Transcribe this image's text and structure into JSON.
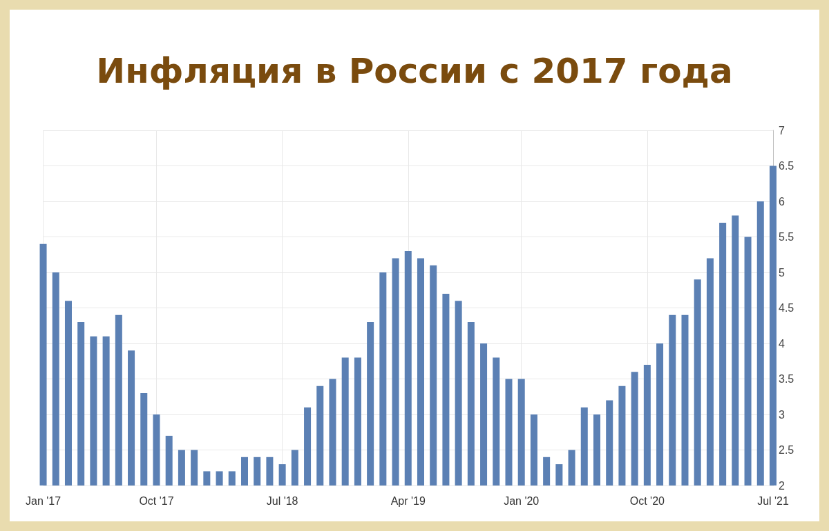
{
  "chart_data": {
    "type": "bar",
    "title": "Инфляция в России с 2017 года",
    "categories": [
      "Jan '17",
      null,
      null,
      null,
      null,
      null,
      null,
      null,
      null,
      "Oct '17",
      null,
      null,
      null,
      null,
      null,
      null,
      null,
      null,
      null,
      "Jul '18",
      null,
      null,
      null,
      null,
      null,
      null,
      null,
      null,
      null,
      "Apr '19",
      null,
      null,
      null,
      null,
      null,
      null,
      null,
      null,
      "Jan '20",
      null,
      null,
      null,
      null,
      null,
      null,
      null,
      null,
      null,
      "Oct '20",
      null,
      null,
      null,
      null,
      null,
      null,
      null,
      null,
      null,
      "Jul '21"
    ],
    "values": [
      5.4,
      5.0,
      4.6,
      4.3,
      4.1,
      4.1,
      4.4,
      3.9,
      3.3,
      3.0,
      2.7,
      2.5,
      2.5,
      2.2,
      2.2,
      2.2,
      2.4,
      2.4,
      2.4,
      2.3,
      2.5,
      3.1,
      3.4,
      3.5,
      3.8,
      3.8,
      4.3,
      5.0,
      5.2,
      5.3,
      5.2,
      5.1,
      4.7,
      4.6,
      4.3,
      4.0,
      3.8,
      3.5,
      3.5,
      3.0,
      2.4,
      2.3,
      2.5,
      3.1,
      3.0,
      3.2,
      3.4,
      3.6,
      3.7,
      4.0,
      4.4,
      4.4,
      4.9,
      5.2,
      5.7,
      5.8,
      5.5,
      6.0,
      6.5
    ],
    "color": "#5b80b4",
    "ylim": [
      2,
      7
    ],
    "yticks": [
      2,
      2.5,
      3,
      3.5,
      4,
      4.5,
      5,
      5.5,
      6,
      6.5,
      7
    ],
    "grid": true
  }
}
